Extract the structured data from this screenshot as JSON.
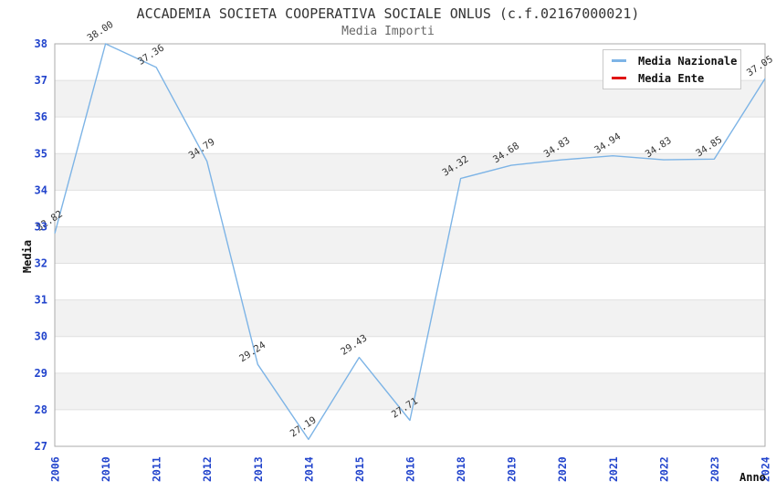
{
  "header": {
    "title": "ACCADEMIA SOCIETA COOPERATIVA SOCIALE ONLUS (c.f.02167000021)",
    "subtitle": "Media Importi"
  },
  "colors": {
    "series_blue": "#7db4e6",
    "series_red": "#e01414",
    "tick_label_blue": "#2244cc",
    "band_gray": "#f2f2f2",
    "gridline": "#e0e0e0",
    "plot_border": "#ababab",
    "title_text": "#333333",
    "subtitle_text": "#666666",
    "point_label_text": "#333333"
  },
  "chart_data": {
    "type": "line",
    "title": "ACCADEMIA SOCIETA COOPERATIVA SOCIALE ONLUS (c.f.02167000021)",
    "subtitle": "Media Importi",
    "xlabel": "Anno",
    "ylabel": "Media",
    "categories": [
      "2006",
      "2010",
      "2011",
      "2012",
      "2013",
      "2014",
      "2015",
      "2016",
      "2018",
      "2019",
      "2020",
      "2021",
      "2022",
      "2023",
      "2024"
    ],
    "series": [
      {
        "name": "Media Nazionale",
        "color": "#7db4e6",
        "values": [
          32.82,
          38.0,
          37.36,
          34.79,
          29.24,
          27.19,
          29.43,
          27.71,
          34.32,
          34.68,
          34.83,
          34.94,
          34.83,
          34.85,
          37.05
        ]
      },
      {
        "name": "Media Ente",
        "color": "#e01414",
        "values": []
      }
    ],
    "ylim": [
      27,
      38
    ],
    "y_tick_step": 1,
    "y_ticks": [
      27,
      28,
      29,
      30,
      31,
      32,
      33,
      34,
      35,
      36,
      37,
      38
    ],
    "grid": "horizontal gridlines with alternating gray bands",
    "point_labels": true,
    "point_label_rotation_deg": -33,
    "x_tick_rotation_deg": -90,
    "legend_position": "top-right",
    "legend_entries": [
      "Media Nazionale",
      "Media Ente"
    ]
  }
}
